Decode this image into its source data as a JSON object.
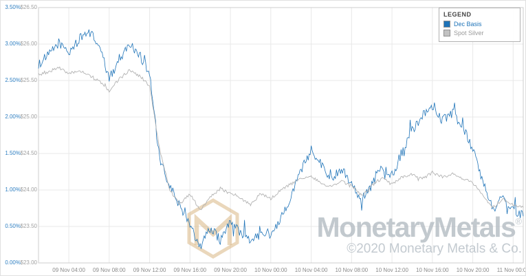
{
  "chart_data": {
    "type": "line",
    "title": "",
    "x_range": [
      "09 Nov 01:00",
      "11 Nov 01:00"
    ],
    "x_tick_labels": [
      "09 Nov 04:00",
      "09 Nov 08:00",
      "09 Nov 12:00",
      "09 Nov 16:00",
      "09 Nov 20:00",
      "10 Nov 00:00",
      "10 Nov 04:00",
      "10 Nov 08:00",
      "10 Nov 12:00",
      "10 Nov 16:00",
      "10 Nov 20:00",
      "11 Nov 00:00"
    ],
    "y_axis_percent": {
      "side": "left-outer",
      "color": "#2f7fc1",
      "min": 0.0,
      "max": 3.5,
      "ticks": [
        "3.50%",
        "3.00%",
        "2.50%",
        "2.00%",
        "1.50%",
        "1.00%",
        "0.50%",
        "0.00%"
      ]
    },
    "y_axis_price": {
      "side": "left-inner",
      "color": "#a0a0a0",
      "min": 23.0,
      "max": 26.5,
      "ticks": [
        "$26.50",
        "$26.00",
        "$25.50",
        "$25.00",
        "$24.50",
        "$24.00",
        "$23.50",
        "$23.00"
      ]
    },
    "grid": true,
    "legend_position": "top-right",
    "series": [
      {
        "name": "Dec Basis",
        "unit": "%",
        "color": "#1e73b8",
        "values": [
          2.72,
          2.85,
          3.02,
          2.88,
          3.06,
          3.18,
          2.98,
          2.52,
          2.8,
          3.0,
          2.86,
          2.6,
          1.4,
          1.05,
          0.78,
          0.55,
          0.22,
          0.48,
          0.32,
          0.56,
          0.42,
          0.28,
          0.46,
          0.38,
          0.62,
          0.92,
          1.26,
          1.56,
          1.36,
          1.14,
          1.3,
          1.1,
          0.86,
          1.06,
          1.34,
          1.2,
          1.52,
          1.82,
          2.02,
          2.12,
          1.96,
          2.06,
          1.88,
          1.56,
          1.1,
          0.74,
          0.9,
          0.72,
          0.64
        ]
      },
      {
        "name": "Spot Silver",
        "unit": "$/oz",
        "color": "#b3b3b3",
        "values": [
          25.58,
          25.62,
          25.68,
          25.6,
          25.64,
          25.57,
          25.5,
          25.36,
          25.52,
          25.64,
          25.56,
          25.42,
          24.55,
          24.0,
          23.8,
          23.95,
          23.72,
          23.9,
          24.02,
          23.95,
          23.88,
          23.8,
          23.95,
          23.88,
          24.0,
          24.08,
          24.15,
          24.18,
          24.1,
          24.04,
          24.12,
          24.06,
          23.92,
          24.06,
          24.16,
          24.08,
          24.18,
          24.22,
          24.15,
          24.24,
          24.18,
          24.22,
          24.16,
          24.1,
          23.92,
          23.76,
          23.88,
          23.8,
          23.76
        ]
      }
    ]
  },
  "legend": {
    "title": "LEGEND",
    "items": [
      {
        "label": "Dec Basis",
        "color": "#1e73b8"
      },
      {
        "label": "Spot Silver",
        "color": "#c2c2c2"
      }
    ]
  },
  "watermark": {
    "logo": "monetary-metals-hexagon-m-logo",
    "wordmark": "MonetaryMetals",
    "registered_mark": "®",
    "copyright": "©2020 Monetary Metals & Co."
  },
  "colors": {
    "grid_line": "#e8e8e8",
    "plot_border": "#cccccc",
    "basis_line": "#1e73b8",
    "spot_line": "#b3b3b3",
    "watermark_gold": "#d6b078"
  }
}
